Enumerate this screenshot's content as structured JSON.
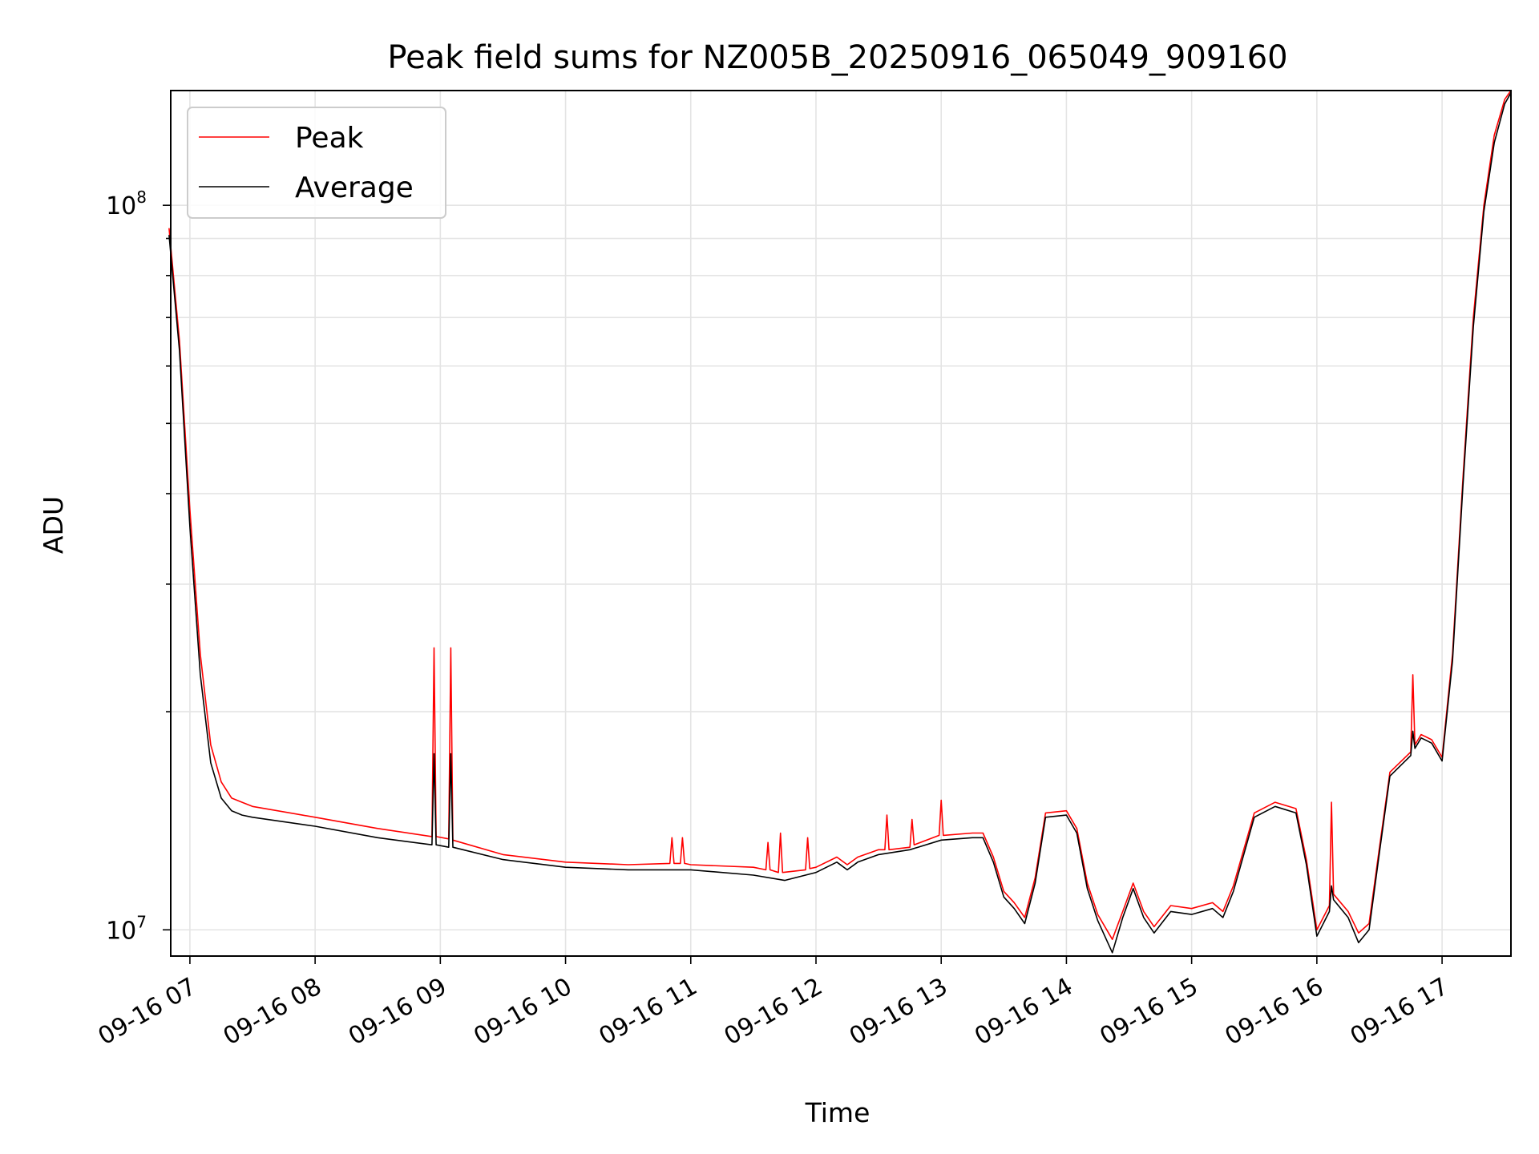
{
  "chart_data": {
    "type": "line",
    "title": "Peak field sums for NZ005B_20250916_065049_909160",
    "xlabel": "Time",
    "ylabel": "ADU",
    "y_scale": "log",
    "ylim": [
      9200000,
      144000000
    ],
    "xlim": [
      "2025-09-16 06:50:49",
      "2025-09-16 17:33:00"
    ],
    "grid": true,
    "legend_position": "upper-left",
    "x_ticks": [
      {
        "time": "2025-09-16 07:00",
        "label": "09-16 07"
      },
      {
        "time": "2025-09-16 08:00",
        "label": "09-16 08"
      },
      {
        "time": "2025-09-16 09:00",
        "label": "09-16 09"
      },
      {
        "time": "2025-09-16 10:00",
        "label": "09-16 10"
      },
      {
        "time": "2025-09-16 11:00",
        "label": "09-16 11"
      },
      {
        "time": "2025-09-16 12:00",
        "label": "09-16 12"
      },
      {
        "time": "2025-09-16 13:00",
        "label": "09-16 13"
      },
      {
        "time": "2025-09-16 14:00",
        "label": "09-16 14"
      },
      {
        "time": "2025-09-16 15:00",
        "label": "09-16 15"
      },
      {
        "time": "2025-09-16 16:00",
        "label": "09-16 16"
      },
      {
        "time": "2025-09-16 17:00",
        "label": "09-16 17"
      }
    ],
    "y_ticks": [
      {
        "value": 10000000,
        "base": "10",
        "exp": "7"
      },
      {
        "value": 100000000,
        "base": "10",
        "exp": "8"
      }
    ],
    "series": [
      {
        "name": "Peak",
        "color": "#ff0000",
        "points": [
          [
            "2025-09-16 06:50",
            93000000
          ],
          [
            "2025-09-16 06:55",
            65000000
          ],
          [
            "2025-09-16 07:00",
            38000000
          ],
          [
            "2025-09-16 07:05",
            24000000
          ],
          [
            "2025-09-16 07:10",
            18000000
          ],
          [
            "2025-09-16 07:15",
            16000000
          ],
          [
            "2025-09-16 07:20",
            15200000
          ],
          [
            "2025-09-16 07:25",
            15000000
          ],
          [
            "2025-09-16 07:30",
            14800000
          ],
          [
            "2025-09-16 08:00",
            14300000
          ],
          [
            "2025-09-16 08:30",
            13800000
          ],
          [
            "2025-09-16 08:56",
            13450000
          ],
          [
            "2025-09-16 08:57",
            24500000
          ],
          [
            "2025-09-16 08:58",
            13450000
          ],
          [
            "2025-09-16 09:04",
            13350000
          ],
          [
            "2025-09-16 09:05",
            24500000
          ],
          [
            "2025-09-16 09:06",
            13300000
          ],
          [
            "2025-09-16 09:30",
            12700000
          ],
          [
            "2025-09-16 10:00",
            12400000
          ],
          [
            "2025-09-16 10:30",
            12300000
          ],
          [
            "2025-09-16 10:50",
            12350000
          ],
          [
            "2025-09-16 10:51",
            13400000
          ],
          [
            "2025-09-16 10:52",
            12350000
          ],
          [
            "2025-09-16 10:55",
            12350000
          ],
          [
            "2025-09-16 10:56",
            13400000
          ],
          [
            "2025-09-16 10:57",
            12350000
          ],
          [
            "2025-09-16 11:00",
            12300000
          ],
          [
            "2025-09-16 11:30",
            12200000
          ],
          [
            "2025-09-16 11:36",
            12100000
          ],
          [
            "2025-09-16 11:37",
            13200000
          ],
          [
            "2025-09-16 11:38",
            12100000
          ],
          [
            "2025-09-16 11:42",
            12000000
          ],
          [
            "2025-09-16 11:43",
            13600000
          ],
          [
            "2025-09-16 11:44",
            12000000
          ],
          [
            "2025-09-16 11:55",
            12100000
          ],
          [
            "2025-09-16 11:56",
            13400000
          ],
          [
            "2025-09-16 11:57",
            12150000
          ],
          [
            "2025-09-16 12:00",
            12200000
          ],
          [
            "2025-09-16 12:10",
            12600000
          ],
          [
            "2025-09-16 12:15",
            12300000
          ],
          [
            "2025-09-16 12:20",
            12600000
          ],
          [
            "2025-09-16 12:30",
            12900000
          ],
          [
            "2025-09-16 12:33",
            12900000
          ],
          [
            "2025-09-16 12:34",
            14400000
          ],
          [
            "2025-09-16 12:35",
            12900000
          ],
          [
            "2025-09-16 12:45",
            13000000
          ],
          [
            "2025-09-16 12:46",
            14200000
          ],
          [
            "2025-09-16 12:47",
            13100000
          ],
          [
            "2025-09-16 12:59",
            13500000
          ],
          [
            "2025-09-16 13:00",
            15100000
          ],
          [
            "2025-09-16 13:01",
            13500000
          ],
          [
            "2025-09-16 13:15",
            13600000
          ],
          [
            "2025-09-16 13:20",
            13600000
          ],
          [
            "2025-09-16 13:25",
            12600000
          ],
          [
            "2025-09-16 13:30",
            11300000
          ],
          [
            "2025-09-16 13:35",
            10900000
          ],
          [
            "2025-09-16 13:40",
            10400000
          ],
          [
            "2025-09-16 13:45",
            11800000
          ],
          [
            "2025-09-16 13:50",
            14500000
          ],
          [
            "2025-09-16 14:00",
            14600000
          ],
          [
            "2025-09-16 14:05",
            13800000
          ],
          [
            "2025-09-16 14:10",
            11600000
          ],
          [
            "2025-09-16 14:15",
            10500000
          ],
          [
            "2025-09-16 14:22",
            9700000
          ],
          [
            "2025-09-16 14:27",
            10600000
          ],
          [
            "2025-09-16 14:32",
            11600000
          ],
          [
            "2025-09-16 14:37",
            10600000
          ],
          [
            "2025-09-16 14:42",
            10100000
          ],
          [
            "2025-09-16 14:50",
            10800000
          ],
          [
            "2025-09-16 15:00",
            10700000
          ],
          [
            "2025-09-16 15:10",
            10900000
          ],
          [
            "2025-09-16 15:15",
            10600000
          ],
          [
            "2025-09-16 15:20",
            11500000
          ],
          [
            "2025-09-16 15:30",
            14500000
          ],
          [
            "2025-09-16 15:40",
            15000000
          ],
          [
            "2025-09-16 15:50",
            14700000
          ],
          [
            "2025-09-16 15:55",
            12500000
          ],
          [
            "2025-09-16 16:00",
            10000000
          ],
          [
            "2025-09-16 16:06",
            10800000
          ],
          [
            "2025-09-16 16:07",
            15000000
          ],
          [
            "2025-09-16 16:08",
            11200000
          ],
          [
            "2025-09-16 16:15",
            10600000
          ],
          [
            "2025-09-16 16:20",
            9900000
          ],
          [
            "2025-09-16 16:25",
            10200000
          ],
          [
            "2025-09-16 16:30",
            13000000
          ],
          [
            "2025-09-16 16:35",
            16500000
          ],
          [
            "2025-09-16 16:45",
            17600000
          ],
          [
            "2025-09-16 16:46",
            22500000
          ],
          [
            "2025-09-16 16:47",
            18000000
          ],
          [
            "2025-09-16 16:50",
            18600000
          ],
          [
            "2025-09-16 16:55",
            18300000
          ],
          [
            "2025-09-16 17:00",
            17300000
          ],
          [
            "2025-09-16 17:05",
            24000000
          ],
          [
            "2025-09-16 17:10",
            42000000
          ],
          [
            "2025-09-16 17:15",
            70000000
          ],
          [
            "2025-09-16 17:20",
            100000000
          ],
          [
            "2025-09-16 17:25",
            125000000
          ],
          [
            "2025-09-16 17:30",
            140000000
          ],
          [
            "2025-09-16 17:33",
            144000000
          ]
        ]
      },
      {
        "name": "Average",
        "color": "#000000",
        "points": [
          [
            "2025-09-16 06:50",
            91000000
          ],
          [
            "2025-09-16 06:55",
            63000000
          ],
          [
            "2025-09-16 07:00",
            36000000
          ],
          [
            "2025-09-16 07:05",
            22500000
          ],
          [
            "2025-09-16 07:10",
            17000000
          ],
          [
            "2025-09-16 07:15",
            15200000
          ],
          [
            "2025-09-16 07:20",
            14600000
          ],
          [
            "2025-09-16 07:25",
            14400000
          ],
          [
            "2025-09-16 07:30",
            14300000
          ],
          [
            "2025-09-16 08:00",
            13900000
          ],
          [
            "2025-09-16 08:30",
            13400000
          ],
          [
            "2025-09-16 08:56",
            13100000
          ],
          [
            "2025-09-16 08:57",
            17500000
          ],
          [
            "2025-09-16 08:58",
            13100000
          ],
          [
            "2025-09-16 09:04",
            13000000
          ],
          [
            "2025-09-16 09:05",
            17500000
          ],
          [
            "2025-09-16 09:06",
            13000000
          ],
          [
            "2025-09-16 09:30",
            12500000
          ],
          [
            "2025-09-16 10:00",
            12200000
          ],
          [
            "2025-09-16 10:30",
            12100000
          ],
          [
            "2025-09-16 11:00",
            12100000
          ],
          [
            "2025-09-16 11:30",
            11900000
          ],
          [
            "2025-09-16 11:45",
            11700000
          ],
          [
            "2025-09-16 12:00",
            12000000
          ],
          [
            "2025-09-16 12:10",
            12400000
          ],
          [
            "2025-09-16 12:15",
            12100000
          ],
          [
            "2025-09-16 12:20",
            12400000
          ],
          [
            "2025-09-16 12:30",
            12700000
          ],
          [
            "2025-09-16 12:45",
            12900000
          ],
          [
            "2025-09-16 13:00",
            13300000
          ],
          [
            "2025-09-16 13:15",
            13400000
          ],
          [
            "2025-09-16 13:20",
            13400000
          ],
          [
            "2025-09-16 13:25",
            12400000
          ],
          [
            "2025-09-16 13:30",
            11100000
          ],
          [
            "2025-09-16 13:35",
            10700000
          ],
          [
            "2025-09-16 13:40",
            10200000
          ],
          [
            "2025-09-16 13:45",
            11600000
          ],
          [
            "2025-09-16 13:50",
            14300000
          ],
          [
            "2025-09-16 14:00",
            14400000
          ],
          [
            "2025-09-16 14:05",
            13600000
          ],
          [
            "2025-09-16 14:10",
            11400000
          ],
          [
            "2025-09-16 14:15",
            10300000
          ],
          [
            "2025-09-16 14:22",
            9300000
          ],
          [
            "2025-09-16 14:27",
            10400000
          ],
          [
            "2025-09-16 14:32",
            11400000
          ],
          [
            "2025-09-16 14:37",
            10400000
          ],
          [
            "2025-09-16 14:42",
            9900000
          ],
          [
            "2025-09-16 14:50",
            10600000
          ],
          [
            "2025-09-16 15:00",
            10500000
          ],
          [
            "2025-09-16 15:10",
            10700000
          ],
          [
            "2025-09-16 15:15",
            10400000
          ],
          [
            "2025-09-16 15:20",
            11300000
          ],
          [
            "2025-09-16 15:30",
            14300000
          ],
          [
            "2025-09-16 15:40",
            14800000
          ],
          [
            "2025-09-16 15:50",
            14500000
          ],
          [
            "2025-09-16 15:55",
            12300000
          ],
          [
            "2025-09-16 16:00",
            9800000
          ],
          [
            "2025-09-16 16:06",
            10600000
          ],
          [
            "2025-09-16 16:07",
            11500000
          ],
          [
            "2025-09-16 16:08",
            11000000
          ],
          [
            "2025-09-16 16:15",
            10400000
          ],
          [
            "2025-09-16 16:20",
            9600000
          ],
          [
            "2025-09-16 16:25",
            10000000
          ],
          [
            "2025-09-16 16:30",
            12800000
          ],
          [
            "2025-09-16 16:35",
            16300000
          ],
          [
            "2025-09-16 16:45",
            17400000
          ],
          [
            "2025-09-16 16:46",
            18800000
          ],
          [
            "2025-09-16 16:47",
            17800000
          ],
          [
            "2025-09-16 16:50",
            18400000
          ],
          [
            "2025-09-16 16:55",
            18100000
          ],
          [
            "2025-09-16 17:00",
            17100000
          ],
          [
            "2025-09-16 17:05",
            23500000
          ],
          [
            "2025-09-16 17:10",
            41000000
          ],
          [
            "2025-09-16 17:15",
            68000000
          ],
          [
            "2025-09-16 17:20",
            98000000
          ],
          [
            "2025-09-16 17:25",
            122000000
          ],
          [
            "2025-09-16 17:30",
            138000000
          ],
          [
            "2025-09-16 17:33",
            143000000
          ]
        ]
      }
    ]
  }
}
